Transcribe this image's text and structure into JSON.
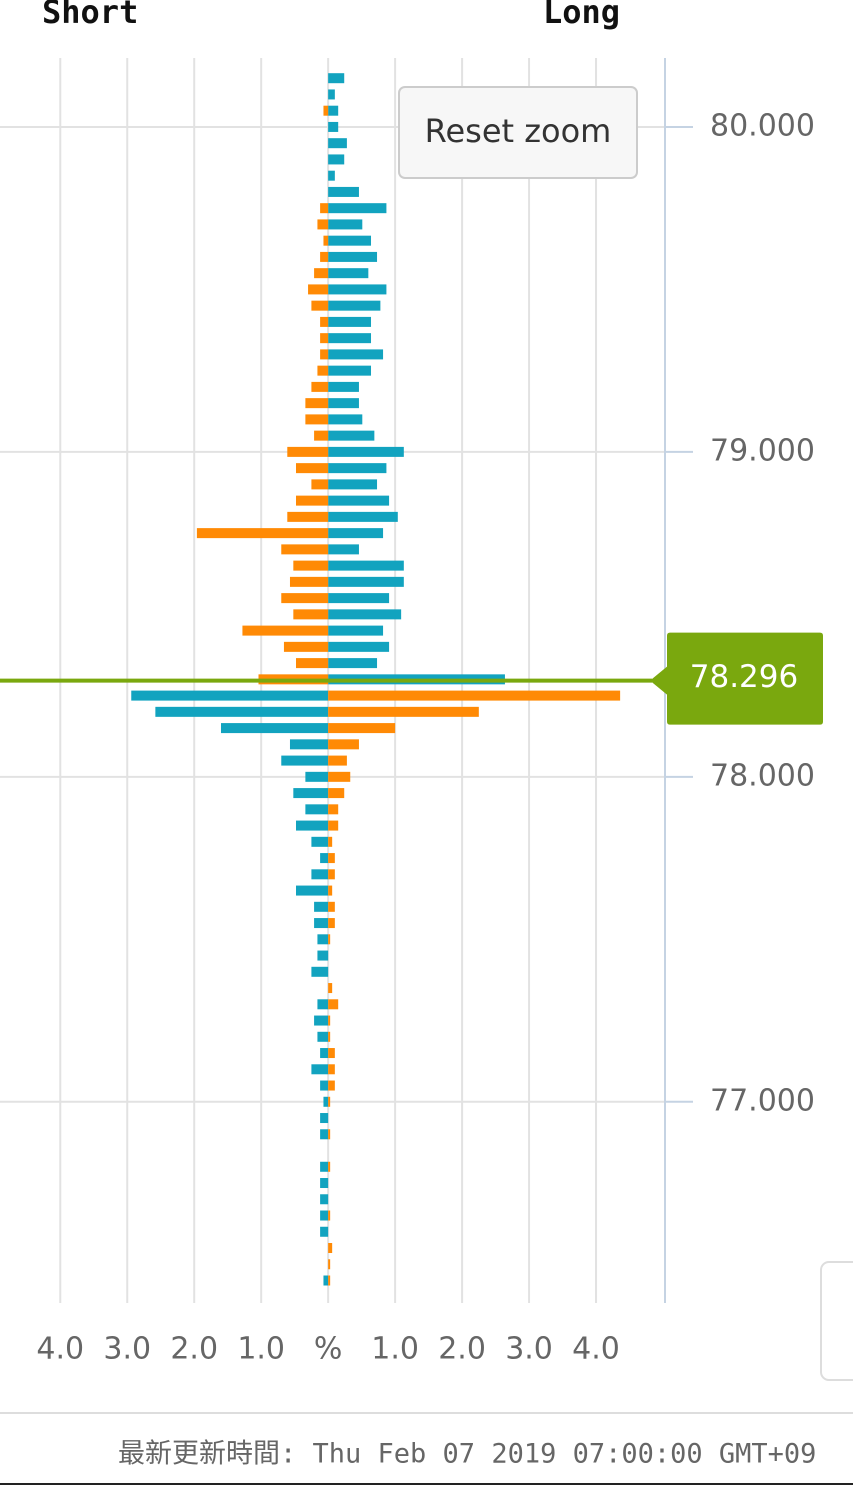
{
  "chart_data": {
    "type": "bar",
    "orientation": "horizontal",
    "left_label": "Short",
    "right_label": "Long",
    "button": "Reset zoom",
    "y": [
      80.15,
      80.1,
      80.05,
      80,
      79.95,
      79.9,
      79.85,
      79.8,
      79.75,
      79.7,
      79.65,
      79.6,
      79.55,
      79.5,
      79.45,
      79.4,
      79.35,
      79.3,
      79.25,
      79.2,
      79.15,
      79.1,
      79.05,
      79,
      78.95,
      78.9,
      78.85,
      78.8,
      78.75,
      78.7,
      78.65,
      78.6,
      78.55,
      78.5,
      78.45,
      78.4,
      78.35,
      78.3,
      78.25,
      78.2,
      78.15,
      78.1,
      78.05,
      78,
      77.95,
      77.9,
      77.85,
      77.8,
      77.75,
      77.7,
      77.65,
      77.6,
      77.55,
      77.5,
      77.45,
      77.4,
      77.35,
      77.3,
      77.25,
      77.2,
      77.15,
      77.1,
      77.05,
      77,
      76.95,
      76.9,
      76.85,
      76.8,
      76.75,
      76.7,
      76.65,
      76.6,
      76.55,
      76.5,
      76.45
    ],
    "series": [
      {
        "color": "#12a3bf",
        "values": [
          0.24,
          0.1,
          0.15,
          0.15,
          0.28,
          0.24,
          0.1,
          0.46,
          0.87,
          0.51,
          0.64,
          0.73,
          0.6,
          0.87,
          0.78,
          0.64,
          0.64,
          0.82,
          0.64,
          0.46,
          0.46,
          0.51,
          0.69,
          1.13,
          0.87,
          0.73,
          0.91,
          1.04,
          0.82,
          0.46,
          1.13,
          1.13,
          0.91,
          1.09,
          0.82,
          0.91,
          0.73,
          2.64,
          -2.94,
          -2.58,
          -1.6,
          -0.57,
          -0.7,
          -0.34,
          -0.52,
          -0.34,
          -0.48,
          -0.25,
          -0.12,
          -0.25,
          -0.48,
          -0.21,
          -0.21,
          -0.16,
          -0.16,
          -0.25,
          0,
          -0.16,
          -0.21,
          -0.16,
          -0.12,
          -0.25,
          -0.12,
          -0.07,
          -0.12,
          -0.12,
          0,
          -0.12,
          -0.12,
          -0.12,
          -0.12,
          -0.12,
          0,
          0,
          -0.07
        ]
      },
      {
        "color": "#ff8a05",
        "values": [
          0,
          0,
          -0.07,
          0,
          0,
          0,
          0,
          0,
          -0.12,
          -0.16,
          -0.07,
          -0.12,
          -0.21,
          -0.3,
          -0.25,
          -0.12,
          -0.12,
          -0.12,
          -0.16,
          -0.25,
          -0.34,
          -0.34,
          -0.21,
          -0.61,
          -0.48,
          -0.25,
          -0.48,
          -0.61,
          -1.96,
          -0.7,
          -0.52,
          -0.57,
          -0.7,
          -0.52,
          -1.28,
          -0.66,
          -0.48,
          -1.04,
          4.36,
          2.25,
          1.0,
          0.46,
          0.28,
          0.33,
          0.24,
          0.15,
          0.15,
          0.06,
          0.1,
          0.1,
          0.06,
          0.1,
          0.1,
          0.03,
          0,
          0,
          0.06,
          0.15,
          0.03,
          0.03,
          0.1,
          0.1,
          0.1,
          0.03,
          0,
          0.03,
          0,
          0.03,
          0,
          0,
          0.03,
          0,
          0.06,
          0.03,
          0.03
        ]
      }
    ],
    "xlim": [
      -4.9,
      5.03
    ],
    "xticks": [
      {
        "value": -4,
        "label": "4.0"
      },
      {
        "value": -3,
        "label": "3.0"
      },
      {
        "value": -2,
        "label": "2.0"
      },
      {
        "value": -1,
        "label": "1.0"
      },
      {
        "value": 0,
        "label": "%"
      },
      {
        "value": 1,
        "label": "1.0"
      },
      {
        "value": 2,
        "label": "2.0"
      },
      {
        "value": 3,
        "label": "3.0"
      },
      {
        "value": 4,
        "label": "4.0"
      }
    ],
    "ylim": [
      76.39,
      80.206
    ],
    "yticks": [
      {
        "value": 80,
        "label": "80.000"
      },
      {
        "value": 79,
        "label": "79.000"
      },
      {
        "value": 78,
        "label": "78.000"
      },
      {
        "value": 77,
        "label": "77.000"
      }
    ],
    "price_line": {
      "value": 78.296,
      "color": "#7aa80e"
    },
    "grid": true
  },
  "footer": "最新更新時間: Thu Feb 07 2019 07:00:00 GMT+09"
}
